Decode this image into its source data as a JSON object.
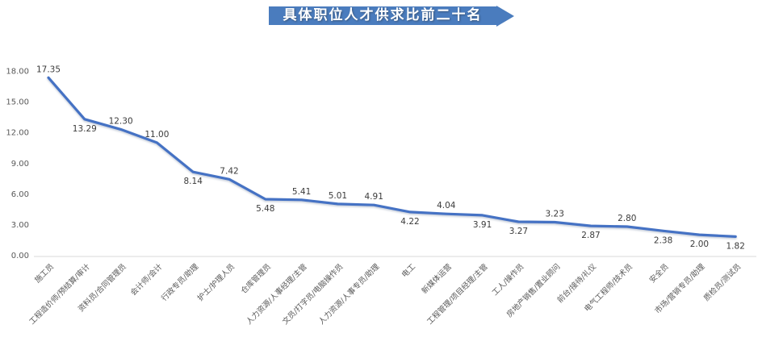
{
  "header": {
    "title": "具体职位人才供求比前二十名"
  },
  "colors": {
    "line": "#4472C4",
    "banner": "#4A7CBE",
    "axis_text": "#595959",
    "data_label": "#3B3B3B",
    "axis_line": "#D9D9D9"
  },
  "chart_data": {
    "type": "line",
    "title": "具体职位人才供求比前二十名",
    "categories": [
      "施工员",
      "工程造价师/预结算/审计",
      "资料员/合同管理员",
      "会计师/会计",
      "行政专员/助理",
      "护士/护理人员",
      "仓库管理员",
      "人力资源/人事经理/主管",
      "文员/打字员/电脑操作员",
      "人力资源/人事专员/助理",
      "电工",
      "新媒体运营",
      "工程管理/项目经理/主管",
      "工人/操作员",
      "房地产销售/置业顾问",
      "前台/接待/礼仪",
      "电气工程师/技术员",
      "安全员",
      "市场/营销专员/助理",
      "质检员/测试员"
    ],
    "values": [
      17.35,
      13.29,
      12.3,
      11.0,
      8.14,
      7.42,
      5.48,
      5.41,
      5.01,
      4.91,
      4.22,
      4.04,
      3.91,
      3.27,
      3.23,
      2.87,
      2.8,
      2.38,
      2.0,
      1.82
    ],
    "label_positions": [
      "above",
      "below",
      "above",
      "above",
      "below",
      "above",
      "below",
      "above",
      "above",
      "above",
      "below",
      "above",
      "below",
      "below",
      "above",
      "below",
      "above",
      "below",
      "below",
      "below"
    ],
    "y_ticks": [
      0,
      3,
      6,
      9,
      12,
      15,
      18
    ],
    "ylim": [
      0,
      18
    ],
    "grid": false,
    "legend": false,
    "xlabel": "",
    "ylabel": ""
  }
}
